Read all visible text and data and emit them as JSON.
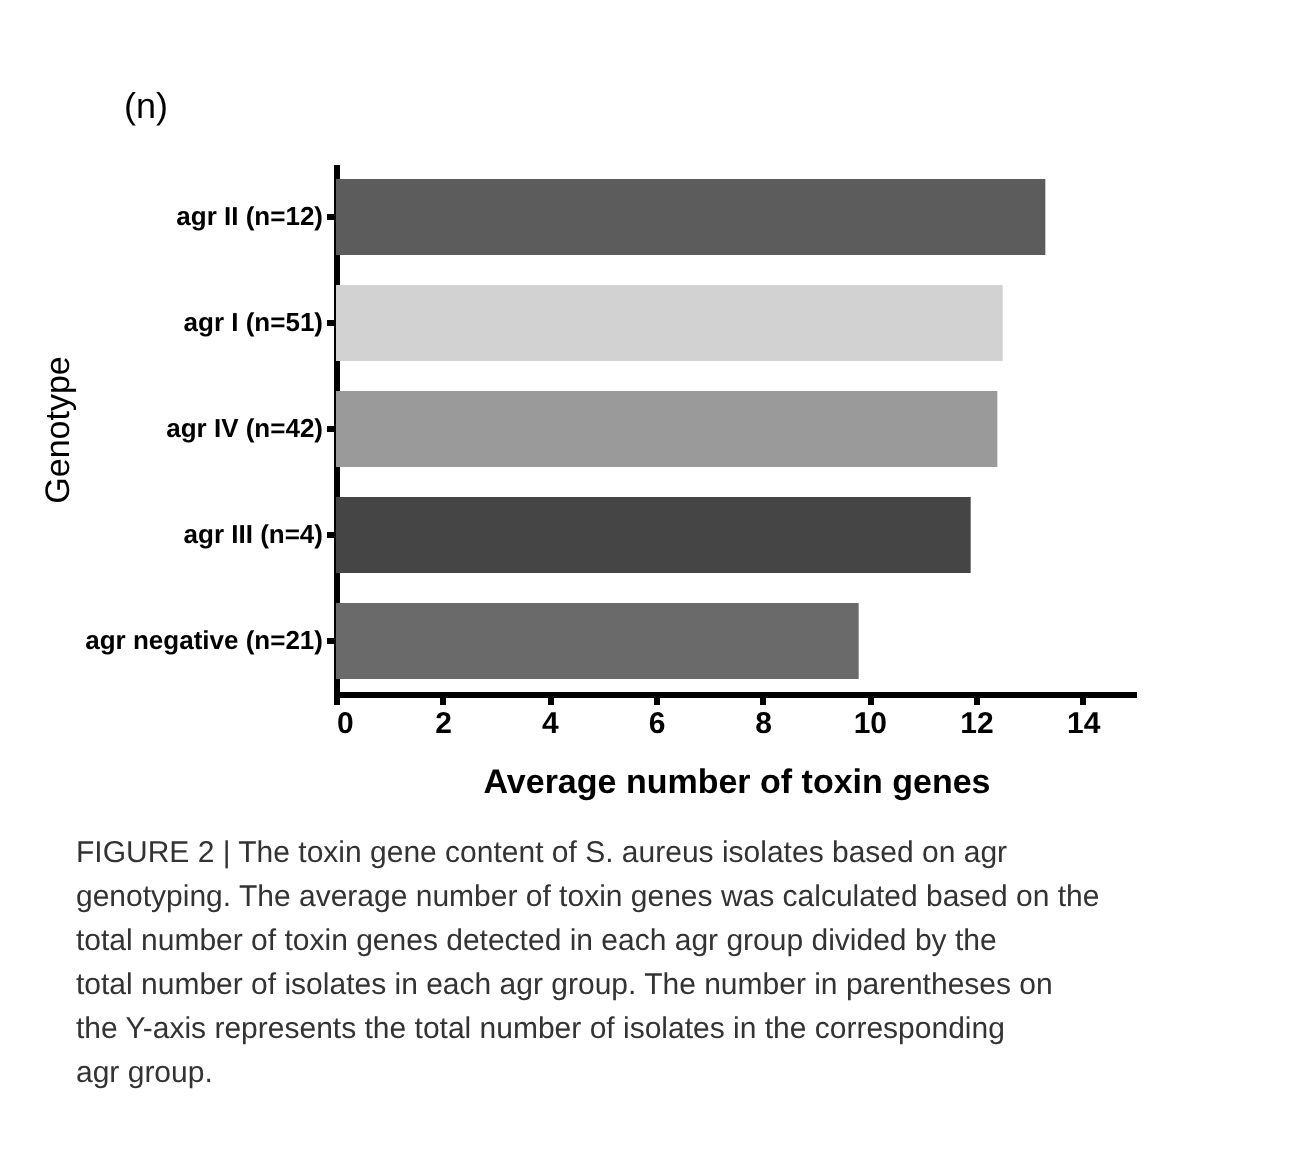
{
  "chart_data": {
    "type": "bar",
    "orientation": "horizontal",
    "categories": [
      "agr II (n=12)",
      "agr I (n=51)",
      "agr IV (n=42)",
      "agr III (n=4)",
      "agr negative (n=21)"
    ],
    "values": [
      13.3,
      12.5,
      12.4,
      11.9,
      9.8
    ],
    "colors": [
      "#5c5c5c",
      "#d2d2d2",
      "#9a9a9a",
      "#454545",
      "#6a6a6a"
    ],
    "xlim": [
      0,
      15
    ],
    "xticks": [
      0,
      2,
      4,
      6,
      8,
      10,
      12,
      14
    ],
    "xlabel": "Average number of toxin genes",
    "ylabel": "Genotype",
    "grid": false,
    "annotations": [
      "(n)",
      "FIGURE 2 | The toxin gene content of S. aureus isolates based on agr genotyping. The average number of toxin genes was calculated based on the total number of toxin genes detected in each agr group divided by the total number of isolates in each agr group. The number in parentheses on the Y-axis represents the total number of isolates in the corresponding agr group."
    ]
  }
}
